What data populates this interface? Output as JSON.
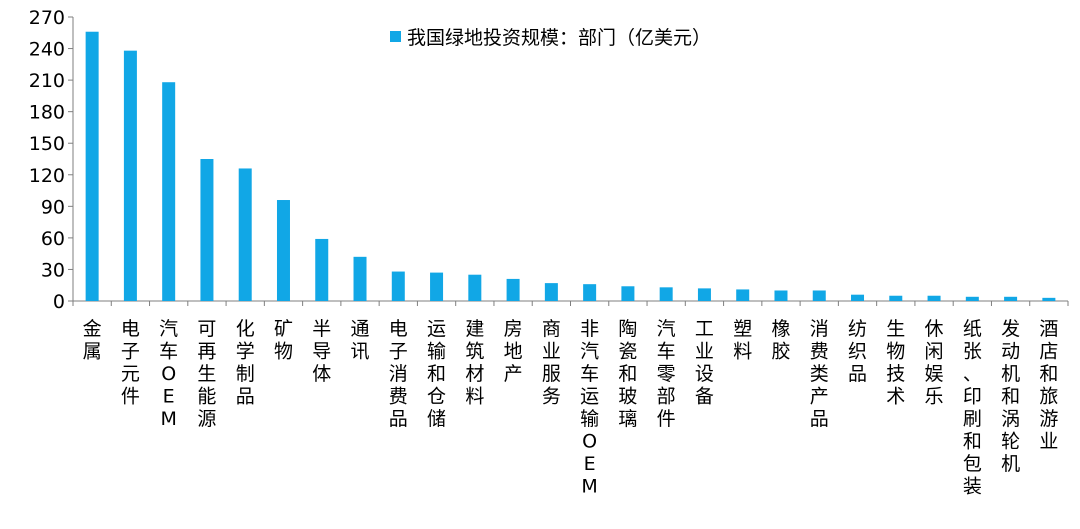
{
  "chart_data": {
    "type": "bar",
    "legend": {
      "label": "我国绿地投资规模：部门（亿美元）",
      "position": "top-center"
    },
    "color": "#11a7e6",
    "ylim": [
      0,
      270
    ],
    "yticks": [
      0,
      30,
      60,
      90,
      120,
      150,
      180,
      210,
      240,
      270
    ],
    "grid": false,
    "categories": [
      "金属",
      "电子元件",
      "汽车OEM",
      "可再生能源",
      "化学制品",
      "矿物",
      "半导体",
      "通讯",
      "电子消费品",
      "运输和仓储",
      "建筑材料",
      "房地产",
      "商业服务",
      "非汽车运输OEM",
      "陶瓷和玻璃",
      "汽车零部件",
      "工业设备",
      "塑料",
      "橡胶",
      "消费类产品",
      "纺织品",
      "生物技术",
      "休闲娱乐",
      "纸张、印刷和包装",
      "发动机和涡轮机",
      "酒店和旅游业"
    ],
    "values": [
      256,
      238,
      208,
      135,
      126,
      96,
      59,
      42,
      28,
      27,
      25,
      21,
      17,
      16,
      14,
      13,
      12,
      11,
      10,
      10,
      6,
      5,
      5,
      4,
      4,
      3
    ]
  }
}
